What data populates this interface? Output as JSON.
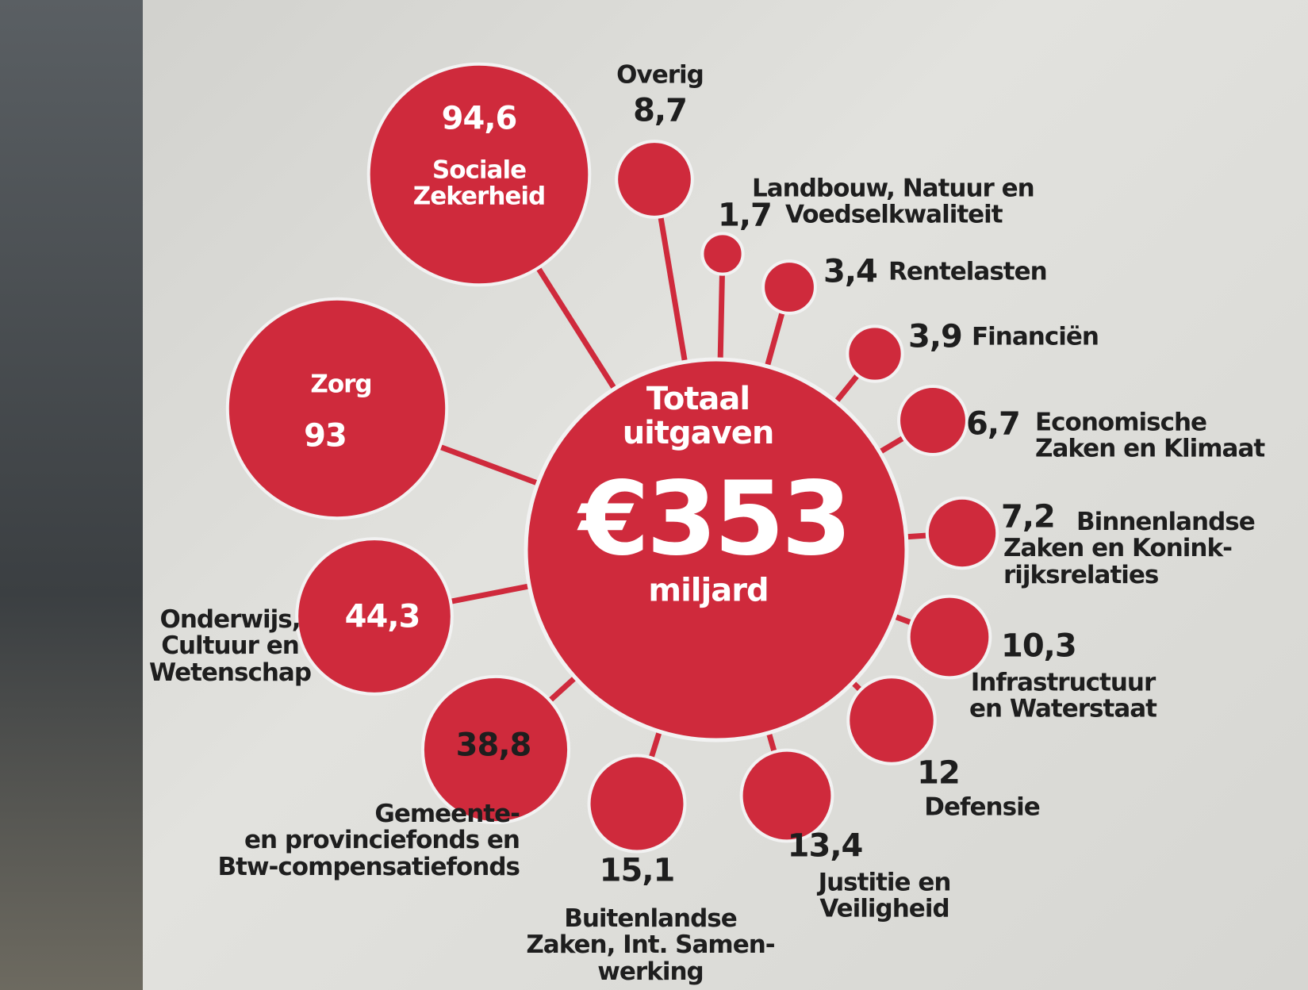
{
  "chart_data": {
    "type": "bubble",
    "color": "#cf2a3c",
    "center": {
      "title": "Totaal\nuitgaven",
      "value": 353,
      "value_label": "€353",
      "unit": "miljard"
    },
    "categories": [
      "Sociale\nZekerheid",
      "Zorg",
      "Onderwijs,\nCultuur en\nWetenschap",
      "Gemeente-\nen provinciefonds en\nBtw-compensatiefonds",
      "Buitenlandse\nZaken, Int. Samen-\nwerking",
      "Justitie en\nVeiligheid",
      "Defensie",
      "Infrastructuur\nen Waterstaat",
      "Binnenlandse\nZaken en Konink-\nrijksrelaties",
      "Economische\nZaken en Klimaat",
      "Financiën",
      "Rentelasten",
      "Landbouw, Natuur en\nVoedselkwaliteit",
      "Overig"
    ],
    "values": [
      94.6,
      93,
      44.3,
      38.8,
      15.1,
      13.4,
      12,
      10.3,
      7.2,
      6.7,
      3.9,
      3.4,
      1.7,
      8.7
    ],
    "value_labels": [
      "94,6",
      "93",
      "44,3",
      "38,8",
      "15,1",
      "13,4",
      "12",
      "10,3",
      "7,2",
      "6,7",
      "3,9",
      "3,4",
      "1,7",
      "8,7"
    ]
  }
}
